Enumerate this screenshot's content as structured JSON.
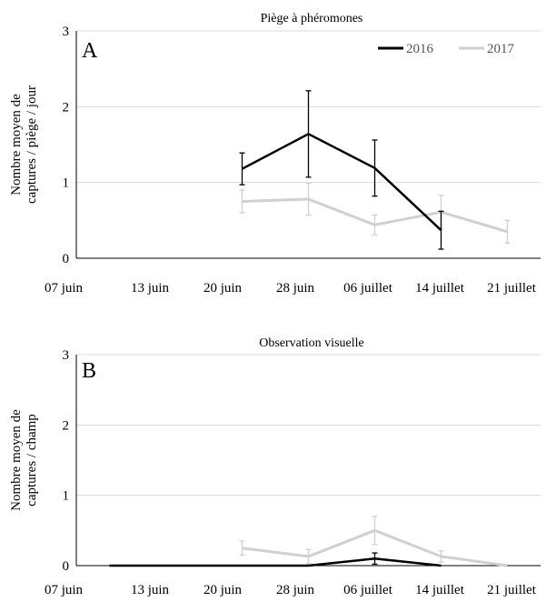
{
  "chart_data": [
    {
      "type": "line",
      "title": "Piège à phéromones",
      "panel_letter": "A",
      "ylabel_lines": [
        "Nombre moyen de",
        "captures / piège / jour"
      ],
      "ylim": [
        0,
        3
      ],
      "yticks": [
        "0",
        "1",
        "2",
        "3"
      ],
      "x_tick_labels": [
        "07 juin",
        "13 juin",
        "20 juin",
        "28 juin",
        "06 juillet",
        "14 juillet",
        "21 juillet"
      ],
      "legend_position": "top-right",
      "grid": true,
      "series": [
        {
          "name": "2016",
          "color": "#000000",
          "points": [
            {
              "x": 2.5,
              "y": 1.18,
              "err": 0.21
            },
            {
              "x": 3.5,
              "y": 1.64,
              "err": 0.57
            },
            {
              "x": 4.5,
              "y": 1.19,
              "err": 0.37
            },
            {
              "x": 5.5,
              "y": 0.37,
              "err": 0.25
            }
          ]
        },
        {
          "name": "2017",
          "color": "#d0d0d0",
          "points": [
            {
              "x": 2.5,
              "y": 0.75,
              "err": 0.15
            },
            {
              "x": 3.5,
              "y": 0.78,
              "err": 0.21
            },
            {
              "x": 4.5,
              "y": 0.44,
              "err": 0.13
            },
            {
              "x": 5.5,
              "y": 0.61,
              "err": 0.22
            },
            {
              "x": 6.5,
              "y": 0.35,
              "err": 0.15
            }
          ]
        }
      ]
    },
    {
      "type": "line",
      "title": "Observation visuelle",
      "panel_letter": "B",
      "ylabel_lines": [
        "Nombre moyen de",
        "captures / champ"
      ],
      "ylim": [
        0,
        3
      ],
      "yticks": [
        "0",
        "1",
        "2",
        "3"
      ],
      "x_tick_labels": [
        "07 juin",
        "13 juin",
        "20 juin",
        "28 juin",
        "06 juillet",
        "14 juillet",
        "21 juillet"
      ],
      "grid": true,
      "series": [
        {
          "name": "2016",
          "color": "#000000",
          "points": [
            {
              "x": 0.5,
              "y": 0,
              "err": 0
            },
            {
              "x": 1.5,
              "y": 0,
              "err": 0
            },
            {
              "x": 2.5,
              "y": 0,
              "err": 0
            },
            {
              "x": 3.5,
              "y": 0,
              "err": 0
            },
            {
              "x": 4.5,
              "y": 0.1,
              "err": 0.08
            },
            {
              "x": 5.5,
              "y": 0,
              "err": 0
            }
          ]
        },
        {
          "name": "2017",
          "color": "#d0d0d0",
          "points": [
            {
              "x": 2.5,
              "y": 0.25,
              "err": 0.1
            },
            {
              "x": 3.5,
              "y": 0.13,
              "err": 0.1
            },
            {
              "x": 4.5,
              "y": 0.5,
              "err": 0.2
            },
            {
              "x": 5.5,
              "y": 0.13,
              "err": 0.08
            },
            {
              "x": 6.5,
              "y": 0,
              "err": 0
            }
          ]
        }
      ]
    }
  ]
}
